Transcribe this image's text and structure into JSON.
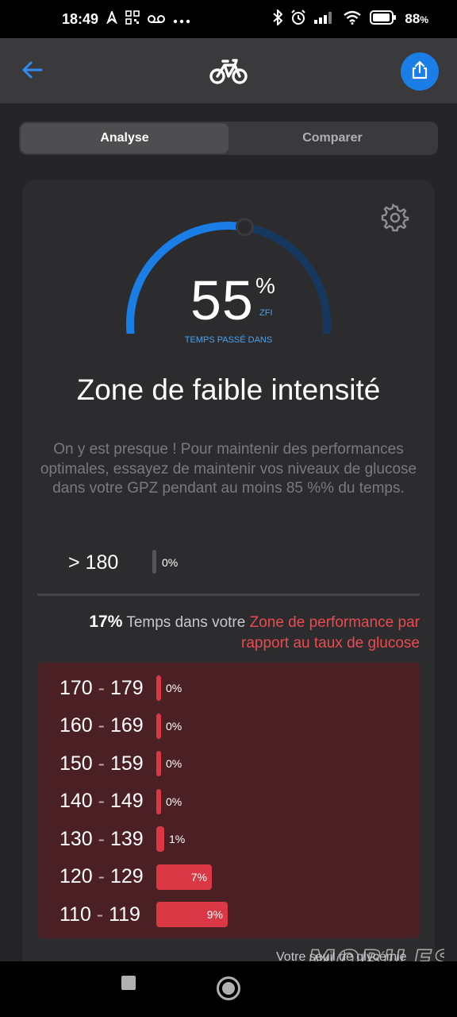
{
  "status_bar": {
    "time": "18:49",
    "battery": "88",
    "battery_suffix": "%"
  },
  "tabs": [
    "Analyse",
    "Comparer"
  ],
  "gauge": {
    "value": "55",
    "percent_sign": "%",
    "unit": "ZFI",
    "caption": "TEMPS PASSÉ DANS",
    "fill_fraction": 0.55,
    "color": "#1a7ee6"
  },
  "zone": {
    "title": "Zone de faible intensité",
    "description": "On y est presque ! Pour maintenir des performances optimales, essayez de maintenir vos niveaux de glucose dans votre GPZ pendant au moins 85 %% du temps."
  },
  "above_180": {
    "label": "> 180",
    "pct": "0%"
  },
  "performance": {
    "bold_pct": "17%",
    "text": "Temps dans votre",
    "highlight": "Zone de performance par rapport au taux de glucose",
    "rows": [
      {
        "low": "170",
        "sep": " - ",
        "high": "179",
        "pct": "0%",
        "value": 0
      },
      {
        "low": "160",
        "sep": " - ",
        "high": "169",
        "pct": "0%",
        "value": 0
      },
      {
        "low": "150",
        "sep": " - ",
        "high": "159",
        "pct": "0%",
        "value": 0
      },
      {
        "low": "140",
        "sep": " - ",
        "high": "149",
        "pct": "0%",
        "value": 0
      },
      {
        "low": "130",
        "sep": " - ",
        "high": "139",
        "pct": "1%",
        "value": 1
      },
      {
        "low": "120",
        "sep": " - ",
        "high": "129",
        "pct": "7%",
        "value": 7
      },
      {
        "low": "110",
        "sep": " - ",
        "high": "119",
        "pct": "9%",
        "value": 9
      }
    ]
  },
  "footer_text": "Votre seuil de glycémie",
  "watermark": "MOBILES VELO"
}
